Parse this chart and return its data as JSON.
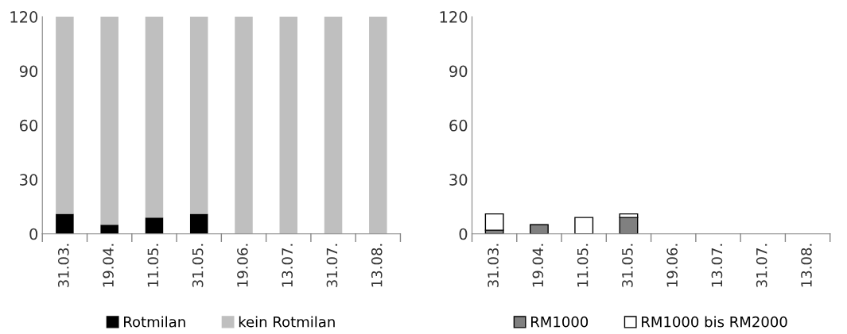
{
  "chart_data": [
    {
      "type": "bar",
      "stacked": true,
      "categories": [
        "31.03.",
        "19.04.",
        "11.05.",
        "31.05.",
        "19.06.",
        "13.07.",
        "31.07.",
        "13.08."
      ],
      "ylim": [
        0,
        120
      ],
      "yticks": [
        0,
        30,
        60,
        90,
        120
      ],
      "legend": "bottom",
      "series": [
        {
          "name": "Rotmilan",
          "color": "#000000",
          "values": [
            11,
            5,
            9,
            11,
            0,
            0,
            0,
            0
          ]
        },
        {
          "name": "kein Rotmilan",
          "color": "#bfbfbf",
          "values": [
            109,
            115,
            111,
            109,
            120,
            120,
            120,
            120
          ]
        }
      ]
    },
    {
      "type": "bar",
      "stacked": true,
      "categories": [
        "31.03.",
        "19.04.",
        "11.05.",
        "31.05.",
        "19.06.",
        "13.07.",
        "31.07.",
        "13.08."
      ],
      "ylim": [
        0,
        120
      ],
      "yticks": [
        0,
        30,
        60,
        90,
        120
      ],
      "legend": "bottom",
      "series": [
        {
          "name": "RM1000",
          "color": "#808080",
          "values": [
            2,
            5,
            0,
            9,
            0,
            0,
            0,
            0
          ]
        },
        {
          "name": "RM1000 bis RM2000",
          "color": "#ffffff",
          "values": [
            9,
            0,
            9,
            2,
            0,
            0,
            0,
            0
          ]
        }
      ]
    }
  ]
}
